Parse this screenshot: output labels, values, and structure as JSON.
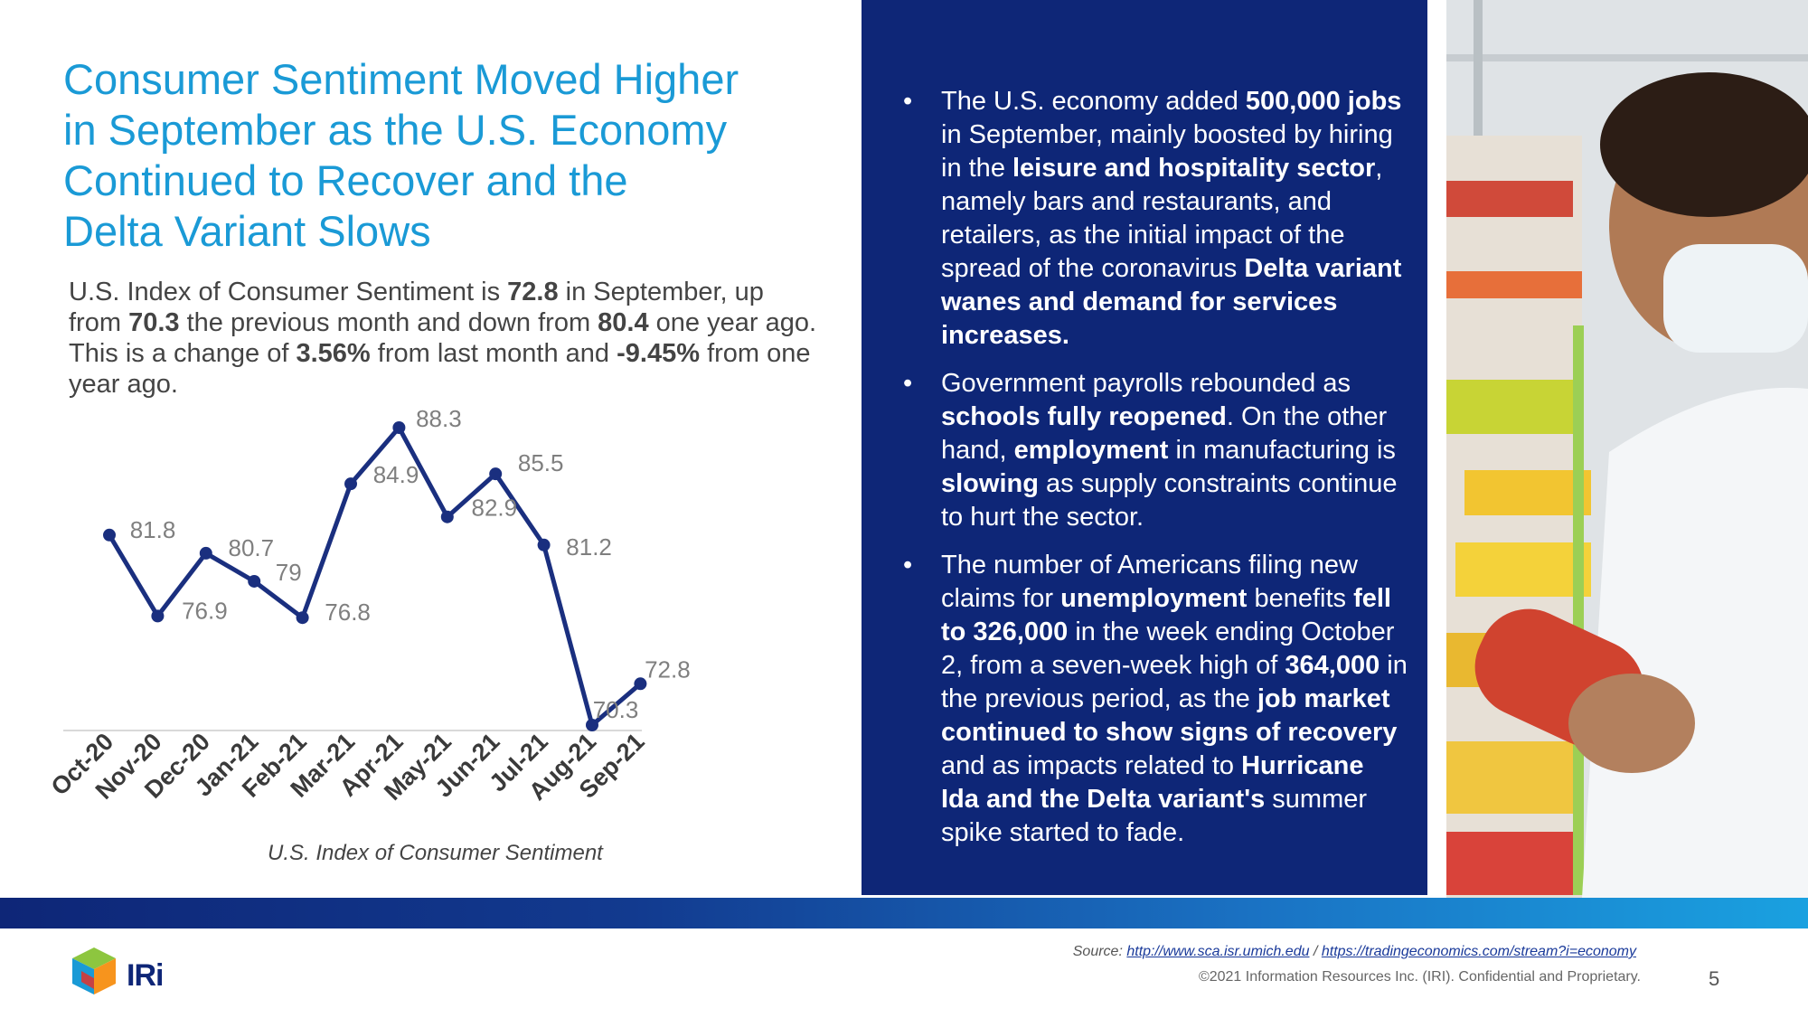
{
  "title": {
    "lines": [
      "Consumer Sentiment Moved Higher",
      "in September as the U.S. Economy",
      "Continued to Recover and the",
      "Delta Variant Slows"
    ]
  },
  "summary": {
    "t1": "U.S. Index of Consumer Sentiment is ",
    "v1": "72.8",
    "t2": " in September, up from ",
    "v2": "70.3",
    "t3": " the previous month and down from ",
    "v3": "80.4",
    "t4": " one year ago. This is a change of ",
    "v4": "3.56%",
    "t5": " from last month and ",
    "v5": "-9.45%",
    "t6": " from one year ago."
  },
  "chart_data": {
    "type": "line",
    "title": "",
    "caption": "U.S. Index of Consumer Sentiment",
    "categories": [
      "Oct-20",
      "Nov-20",
      "Dec-20",
      "Jan-21",
      "Feb-21",
      "Mar-21",
      "Apr-21",
      "May-21",
      "Jun-21",
      "Jul-21",
      "Aug-21",
      "Sep-21"
    ],
    "series": [
      {
        "name": "U.S. Index of Consumer Sentiment",
        "values": [
          81.8,
          76.9,
          80.7,
          79,
          76.8,
          84.9,
          88.3,
          82.9,
          85.5,
          81.2,
          70.3,
          72.8
        ]
      }
    ],
    "data_labels": [
      "81.8",
      "76.9",
      "80.7",
      "79",
      "76.8",
      "84.9",
      "88.3",
      "82.9",
      "85.5",
      "81.2",
      "70.3",
      "72.8"
    ],
    "ylim": [
      70.3,
      88.3
    ],
    "xlabel": "",
    "ylabel": "",
    "grid": false,
    "line_color": "#1a2f7f",
    "label_color": "#7f7f7f"
  },
  "bullets": [
    [
      {
        "t": "The U.S. economy added "
      },
      {
        "t": "500,000 jobs",
        "b": true
      },
      {
        "t": " in September, mainly boosted by hiring in the "
      },
      {
        "t": "leisure and hospitality sector",
        "b": true
      },
      {
        "t": ", namely bars and restaurants, and retailers, as the initial impact of the spread of the coronavirus "
      },
      {
        "t": "Delta variant wanes and demand for services increases.",
        "b": true
      }
    ],
    [
      {
        "t": "Government payrolls rebounded as "
      },
      {
        "t": "schools fully reopened",
        "b": true
      },
      {
        "t": ". On the other hand, "
      },
      {
        "t": "employment",
        "b": true
      },
      {
        "t": " in manufacturing is "
      },
      {
        "t": "slowing",
        "b": true
      },
      {
        "t": " as supply constraints continue to hurt the sector."
      }
    ],
    [
      {
        "t": "The number of Americans filing new claims for "
      },
      {
        "t": "unemployment",
        "b": true
      },
      {
        "t": " benefits "
      },
      {
        "t": "fell to 326,000",
        "b": true
      },
      {
        "t": " in the week ending October 2, from a seven-week high of "
      },
      {
        "t": "364,000",
        "b": true
      },
      {
        "t": " in the previous period, as the "
      },
      {
        "t": "job market continued to show signs of recovery",
        "b": true
      },
      {
        "t": " and as impacts related to "
      },
      {
        "t": "Hurricane Ida and the Delta variant's",
        "b": true
      },
      {
        "t": " summer spike started to fade."
      }
    ]
  ],
  "footer": {
    "source_label": "Source: ",
    "source_link1": "http://www.sca.isr.umich.edu",
    "source_sep": " / ",
    "source_link2": "https://tradingeconomics.com/stream?i=economy",
    "copyright": "©2021 Information Resources Inc. (IRI). Confidential and Proprietary.",
    "page_number": "5",
    "logo_text": "IRi"
  },
  "colors": {
    "title": "#1a9ad6",
    "panel": "#0e2677",
    "chart_line": "#1a2f7f"
  },
  "icons": {
    "logo": "iri-cube-logo-icon",
    "photo": "shopper-photo"
  }
}
